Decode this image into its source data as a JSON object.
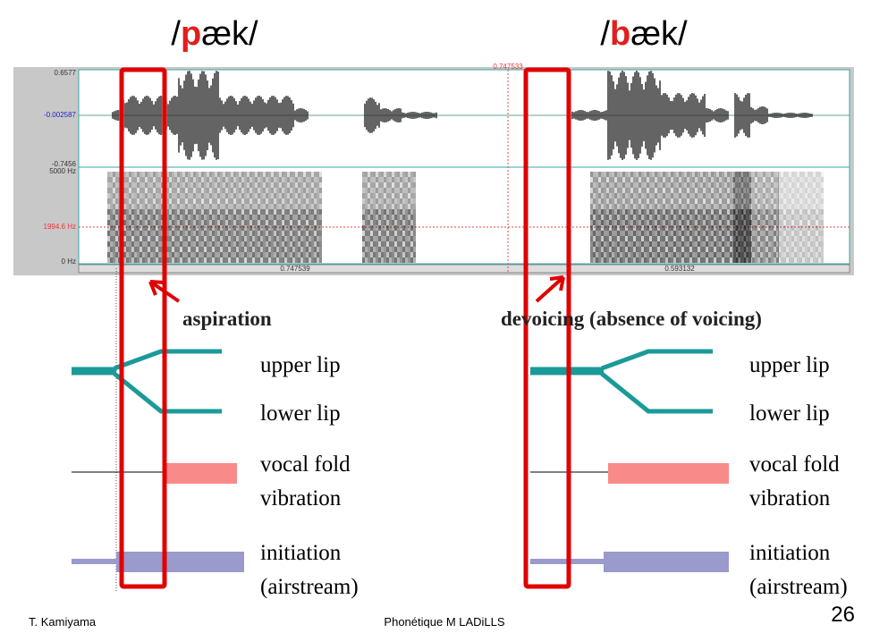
{
  "titles": [
    {
      "before": "/",
      "highlight": "p",
      "after": "æk/"
    },
    {
      "before": "/",
      "highlight": "b",
      "after": "æk/"
    }
  ],
  "waveform_labels": {
    "top": "0.6577",
    "middle": "-0.002587",
    "bottom": "-0.7456",
    "cursor": "0.747533"
  },
  "spectrogram_labels": {
    "top": "5000 Hz",
    "middle": "1994.6 Hz",
    "bottom": "0 Hz"
  },
  "time_labels": [
    "0.747539",
    "0.593132"
  ],
  "annotations": [
    "aspiration",
    "devoicing (absence of voicing)"
  ],
  "articulator_labels": {
    "upper_lip": "upper lip",
    "lower_lip": "lower lip",
    "vocal_fold": [
      "vocal fold",
      "vibration"
    ],
    "initiation": [
      "initiation",
      "(airstream)"
    ]
  },
  "footer": {
    "author": "T. Kamiyama",
    "course": "Phonétique M  LADiLLS",
    "page": "26"
  }
}
